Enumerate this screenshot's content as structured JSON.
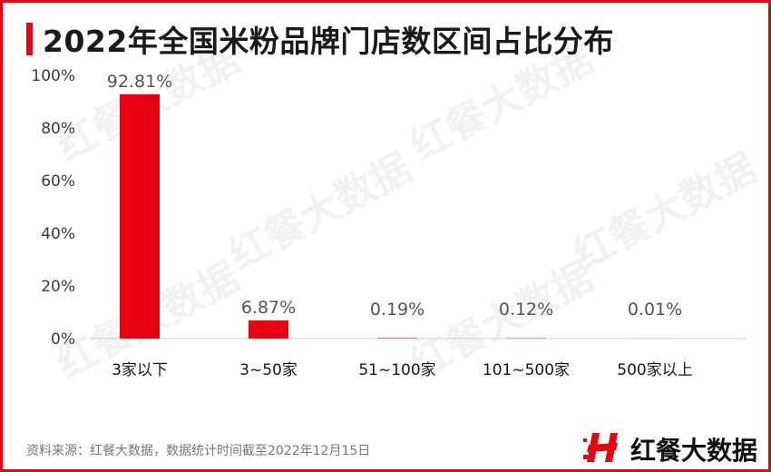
{
  "title": "2022年全国米粉品牌门店数区间占比分布",
  "source": "资料来源：红餐大数据，数据统计时间截至2022年12月15日",
  "brand": {
    "name": "红餐大数据",
    "logo_icon": "red-h-logo-icon"
  },
  "watermark": "红餐大数据",
  "colors": {
    "bar": "#e60012",
    "border": "#e60012",
    "accent": "#e60012"
  },
  "chart_data": {
    "type": "bar",
    "title": "2022年全国米粉品牌门店数区间占比分布",
    "xlabel": "",
    "ylabel": "",
    "categories": [
      "3家以下",
      "3~50家",
      "51~100家",
      "101~500家",
      "500家以上"
    ],
    "values": [
      92.81,
      6.87,
      0.19,
      0.12,
      0.01
    ],
    "value_labels": [
      "92.81%",
      "6.87%",
      "0.19%",
      "0.12%",
      "0.01%"
    ],
    "ylim": [
      0,
      100
    ],
    "yticks": [
      0,
      20,
      40,
      60,
      80,
      100
    ],
    "ytick_labels": [
      "0%",
      "20%",
      "40%",
      "60%",
      "80%",
      "100%"
    ],
    "grid": false,
    "legend": "none"
  }
}
